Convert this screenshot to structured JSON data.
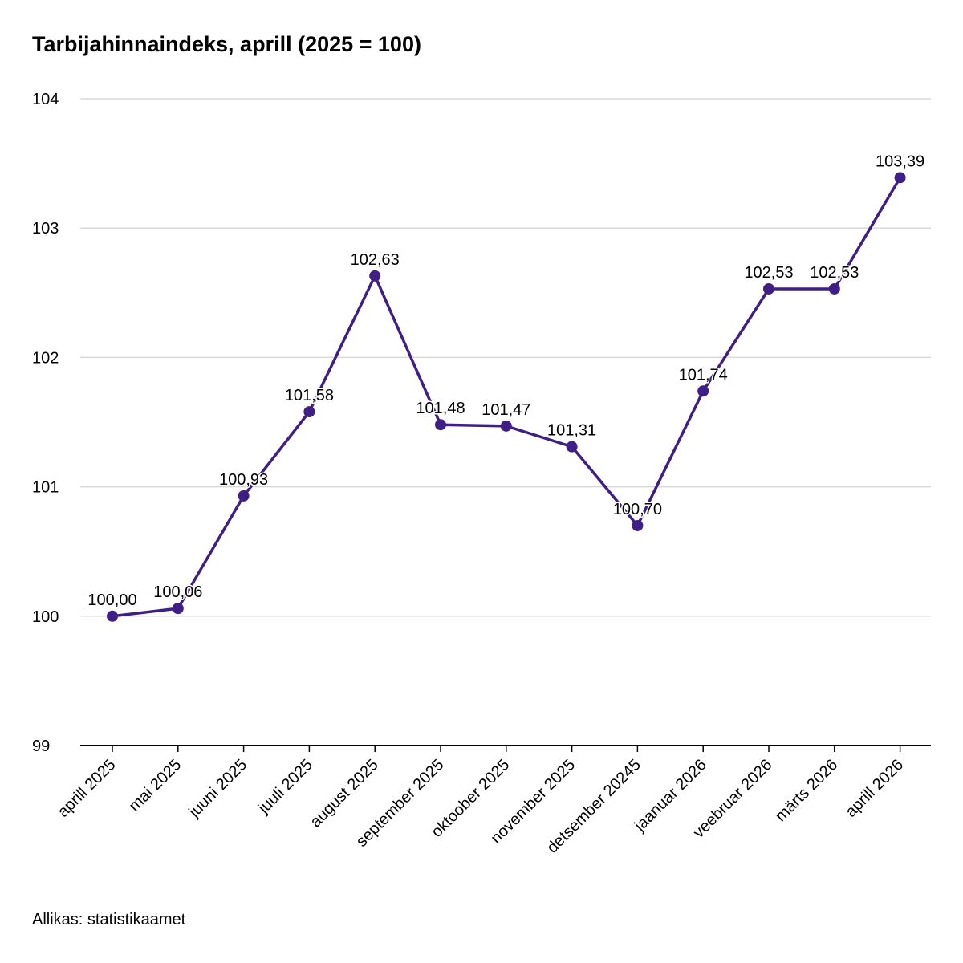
{
  "title": "Tarbijahinnaindeks, aprill (2025 = 100)",
  "source": "Allikas: statistikaamet",
  "colors": {
    "line": "#3f1e86",
    "grid": "#d9d9d9",
    "axis": "#000000"
  },
  "chart_data": {
    "type": "line",
    "title": "Tarbijahinnaindeks, aprill (2025 = 100)",
    "xlabel": "",
    "ylabel": "",
    "ylim": [
      99,
      104
    ],
    "yticks": [
      "99",
      "100",
      "101",
      "102",
      "103",
      "104"
    ],
    "grid": true,
    "categories": [
      "aprill 2025",
      "mai 2025",
      "juuni 2025",
      "juuli 2025",
      "august 2025",
      "september 2025",
      "oktoober 2025",
      "november 2025",
      "detsember 20245",
      "jaanuar 2026",
      "veebruar 2026",
      "märts 2026",
      "aprill 2026"
    ],
    "values": [
      100.0,
      100.06,
      100.93,
      101.58,
      102.63,
      101.48,
      101.47,
      101.31,
      100.7,
      101.74,
      102.53,
      102.53,
      103.39
    ],
    "data_labels": [
      "100,00",
      "100,06",
      "100,93",
      "101,58",
      "102,63",
      "101,48",
      "101,47",
      "101,31",
      "100,70",
      "101,74",
      "102,53",
      "102,53",
      "103,39"
    ]
  }
}
